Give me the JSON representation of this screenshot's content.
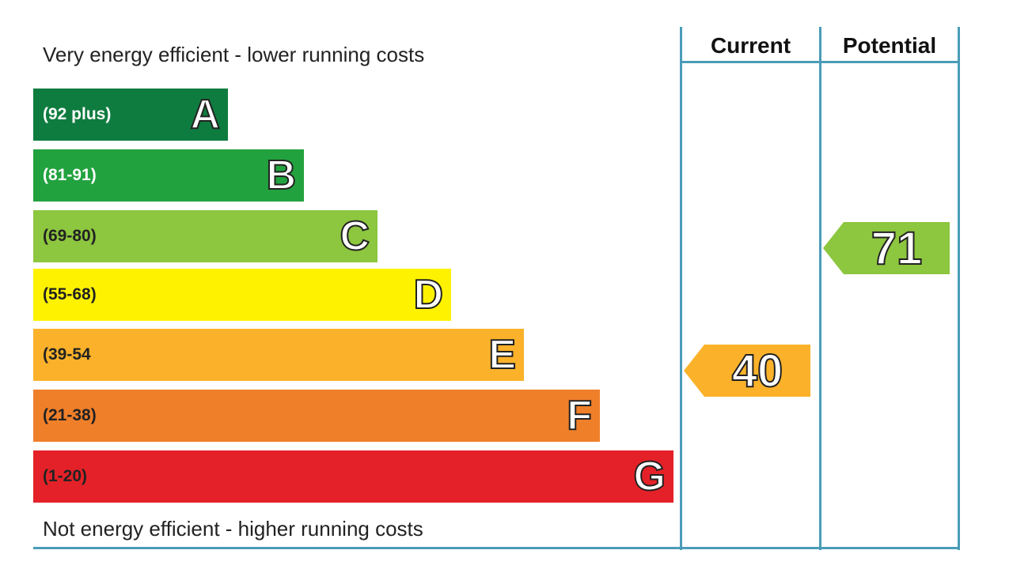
{
  "chart_data": {
    "type": "bar",
    "top_caption": "Very energy efficient - lower running costs",
    "bottom_caption": "Not energy efficient - higher running costs",
    "bands": [
      {
        "letter": "A",
        "range": "(92 plus)",
        "min": 92,
        "max": 100,
        "color": "#0f7c3f",
        "text_color": "#ffffff"
      },
      {
        "letter": "B",
        "range": "(81-91)",
        "min": 81,
        "max": 91,
        "color": "#22a23e",
        "text_color": "#ffffff"
      },
      {
        "letter": "C",
        "range": "(69-80)",
        "min": 69,
        "max": 80,
        "color": "#8dc63f",
        "text_color": "#222222"
      },
      {
        "letter": "D",
        "range": "(55-68)",
        "min": 55,
        "max": 68,
        "color": "#fff200",
        "text_color": "#222222"
      },
      {
        "letter": "E",
        "range": "(39-54",
        "min": 39,
        "max": 54,
        "color": "#fbb22a",
        "text_color": "#222222"
      },
      {
        "letter": "F",
        "range": "(21-38)",
        "min": 21,
        "max": 38,
        "color": "#f07f2a",
        "text_color": "#222222"
      },
      {
        "letter": "G",
        "range": "(1-20)",
        "min": 1,
        "max": 20,
        "color": "#e42128",
        "text_color": "#222222"
      }
    ],
    "columns": [
      {
        "name": "Current",
        "value": 40,
        "band": "E",
        "color": "#fbb22a"
      },
      {
        "name": "Potential",
        "value": 71,
        "band": "C",
        "color": "#8dc63f"
      }
    ]
  }
}
